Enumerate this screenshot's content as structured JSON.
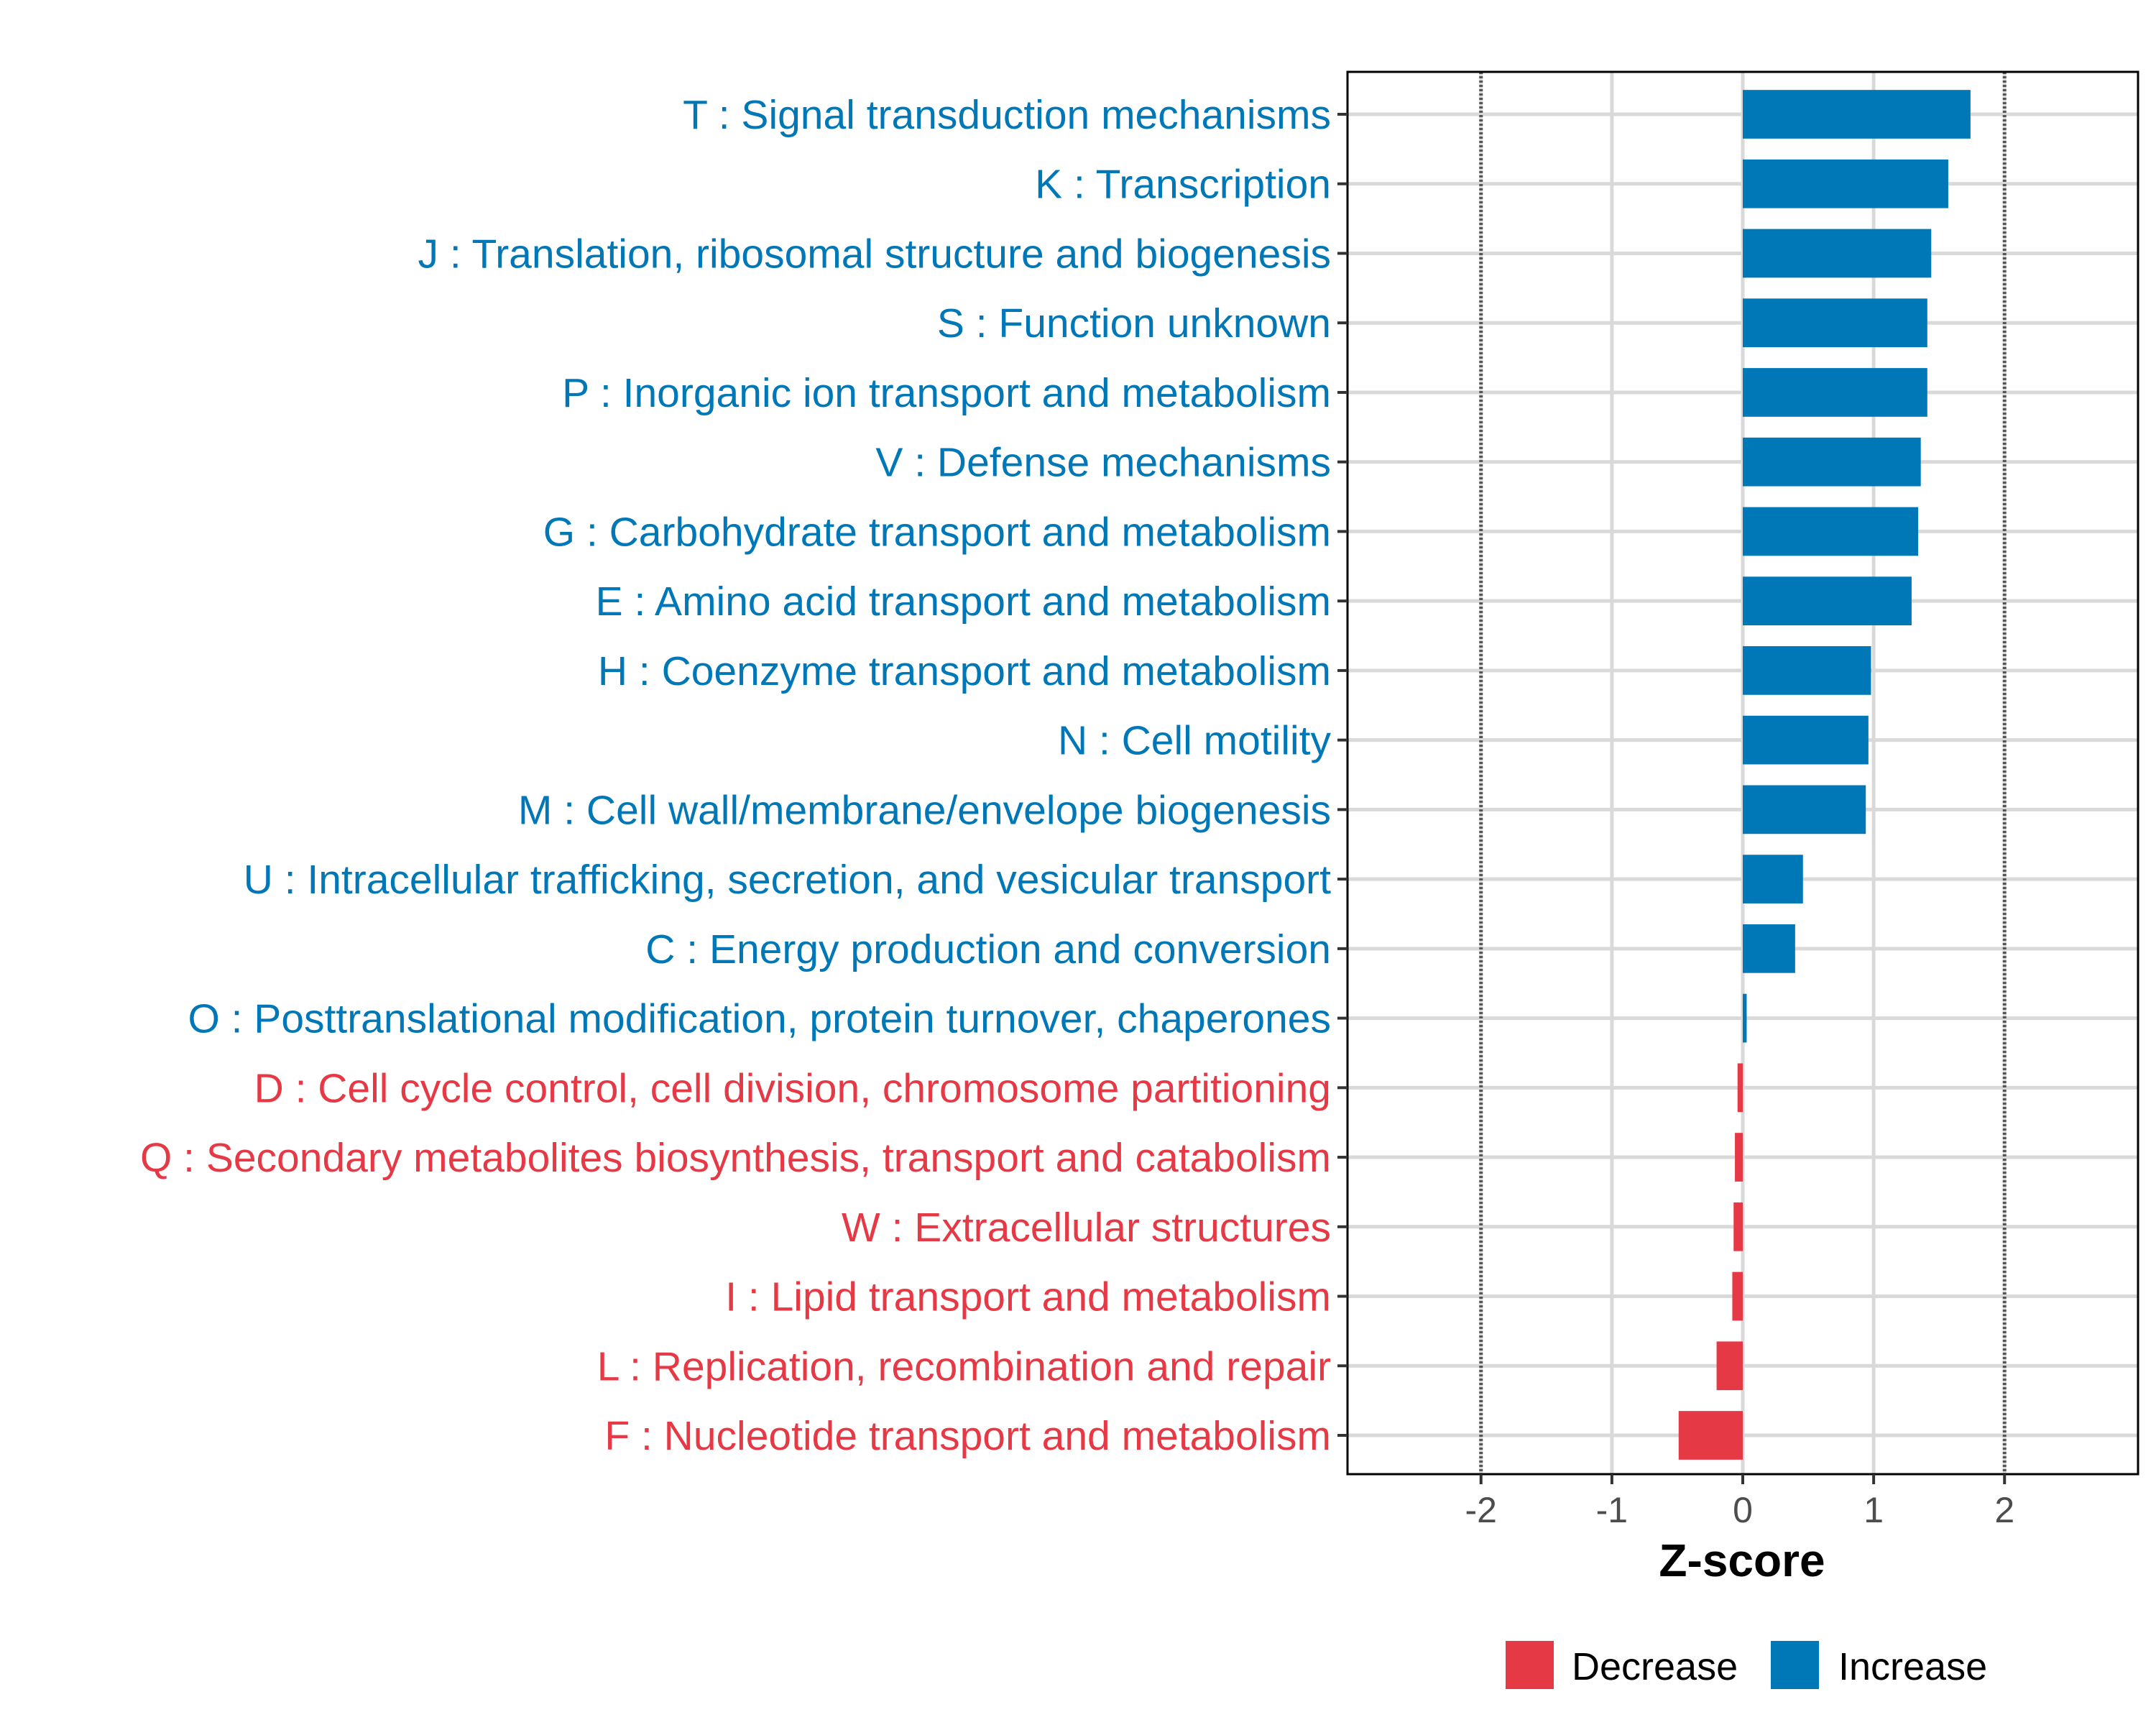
{
  "chart_data": {
    "type": "bar",
    "orientation": "horizontal",
    "xlabel": "Z-score",
    "ylabel": "",
    "xlim": [
      -3.02,
      3.02
    ],
    "xticks": [
      -2,
      -1,
      0,
      1,
      2
    ],
    "xtick_labels": [
      "-2",
      "-1",
      "0",
      "1",
      "2"
    ],
    "reference_lines": [
      -2,
      2
    ],
    "grid": true,
    "legend_position": "bottom",
    "legend": [
      {
        "name": "Decrease",
        "color": "#E63946"
      },
      {
        "name": "Increase",
        "color": "#0077B6"
      }
    ],
    "categories": [
      "T : Signal transduction mechanisms",
      "K : Transcription",
      "J : Translation, ribosomal structure and biogenesis",
      "S : Function unknown",
      "P : Inorganic ion transport and metabolism",
      "V : Defense mechanisms",
      "G : Carbohydrate transport and metabolism",
      "E : Amino acid transport and metabolism",
      "H : Coenzyme transport and metabolism",
      "N : Cell motility",
      "M : Cell wall/membrane/envelope biogenesis",
      "U : Intracellular trafficking, secretion, and vesicular transport",
      "C : Energy production and conversion",
      "O : Posttranslational modification, protein turnover, chaperones",
      "D : Cell cycle control, cell division, chromosome partitioning",
      "Q : Secondary metabolites biosynthesis, transport and catabolism",
      "W : Extracellular structures",
      "I : Lipid transport and metabolism",
      "L : Replication, recombination and repair",
      "F : Nucleotide transport and metabolism"
    ],
    "values": [
      1.74,
      1.57,
      1.44,
      1.41,
      1.41,
      1.36,
      1.34,
      1.29,
      0.98,
      0.96,
      0.94,
      0.46,
      0.4,
      0.03,
      -0.04,
      -0.06,
      -0.07,
      -0.08,
      -0.2,
      -0.49
    ]
  }
}
